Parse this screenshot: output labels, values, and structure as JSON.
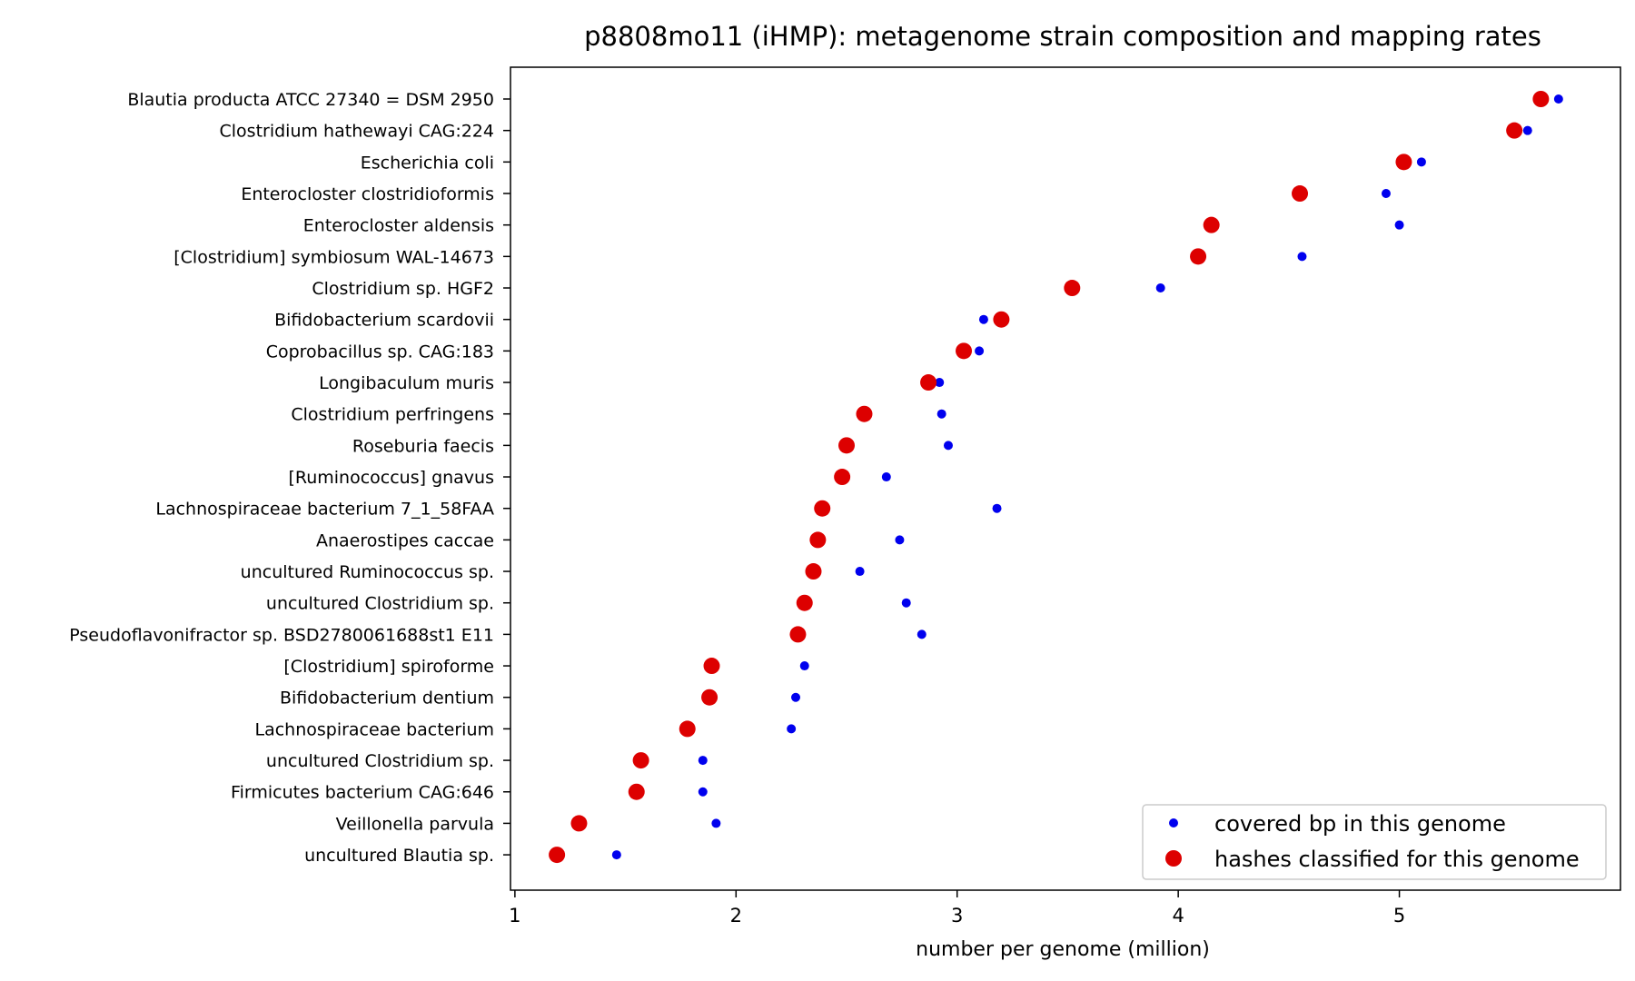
{
  "chart_data": {
    "type": "scatter",
    "title": "p8808mo11 (iHMP): metagenome strain composition and mapping rates",
    "xlabel": "number per genome (million)",
    "ylabel": "",
    "xlim": [
      0.98,
      6.0
    ],
    "xticks": [
      1,
      2,
      3,
      4,
      5
    ],
    "categories": [
      "Blautia producta ATCC 27340 = DSM 2950",
      "Clostridium hathewayi CAG:224",
      "Escherichia coli",
      "Enterocloster clostridioformis",
      "Enterocloster aldensis",
      "[Clostridium] symbiosum WAL-14673",
      "Clostridium sp. HGF2",
      "Bifidobacterium scardovii",
      "Coprobacillus sp. CAG:183",
      "Longibaculum muris",
      "Clostridium perfringens",
      "Roseburia faecis",
      "[Ruminococcus] gnavus",
      "Lachnospiraceae bacterium 7_1_58FAA",
      "Anaerostipes caccae",
      "uncultured Ruminococcus sp.",
      "uncultured Clostridium sp.",
      "Pseudoflavonifractor sp. BSD2780061688st1 E11",
      "[Clostridium] spiroforme",
      "Bifidobacterium dentium",
      "Lachnospiraceae bacterium",
      "uncultured Clostridium sp.",
      "Firmicutes bacterium CAG:646",
      "Veillonella parvula",
      "uncultured Blautia sp."
    ],
    "series": [
      {
        "name": "covered bp in this genome",
        "color": "#0000ee",
        "marker": "small-dot",
        "values": [
          5.72,
          5.58,
          5.1,
          4.94,
          5.0,
          4.56,
          3.92,
          3.12,
          3.1,
          2.92,
          2.93,
          2.96,
          2.68,
          3.18,
          2.74,
          2.56,
          2.77,
          2.84,
          2.31,
          2.27,
          2.25,
          1.85,
          1.85,
          1.91,
          1.46
        ]
      },
      {
        "name": "hashes classified for this genome",
        "color": "#dd0000",
        "marker": "large-dot",
        "values": [
          5.64,
          5.52,
          5.02,
          4.55,
          4.15,
          4.09,
          3.52,
          3.2,
          3.03,
          2.87,
          2.58,
          2.5,
          2.48,
          2.39,
          2.37,
          2.35,
          2.31,
          2.28,
          1.89,
          1.88,
          1.78,
          1.57,
          1.55,
          1.29,
          1.19
        ]
      }
    ],
    "legend_position": "lower-right",
    "grid": false
  }
}
